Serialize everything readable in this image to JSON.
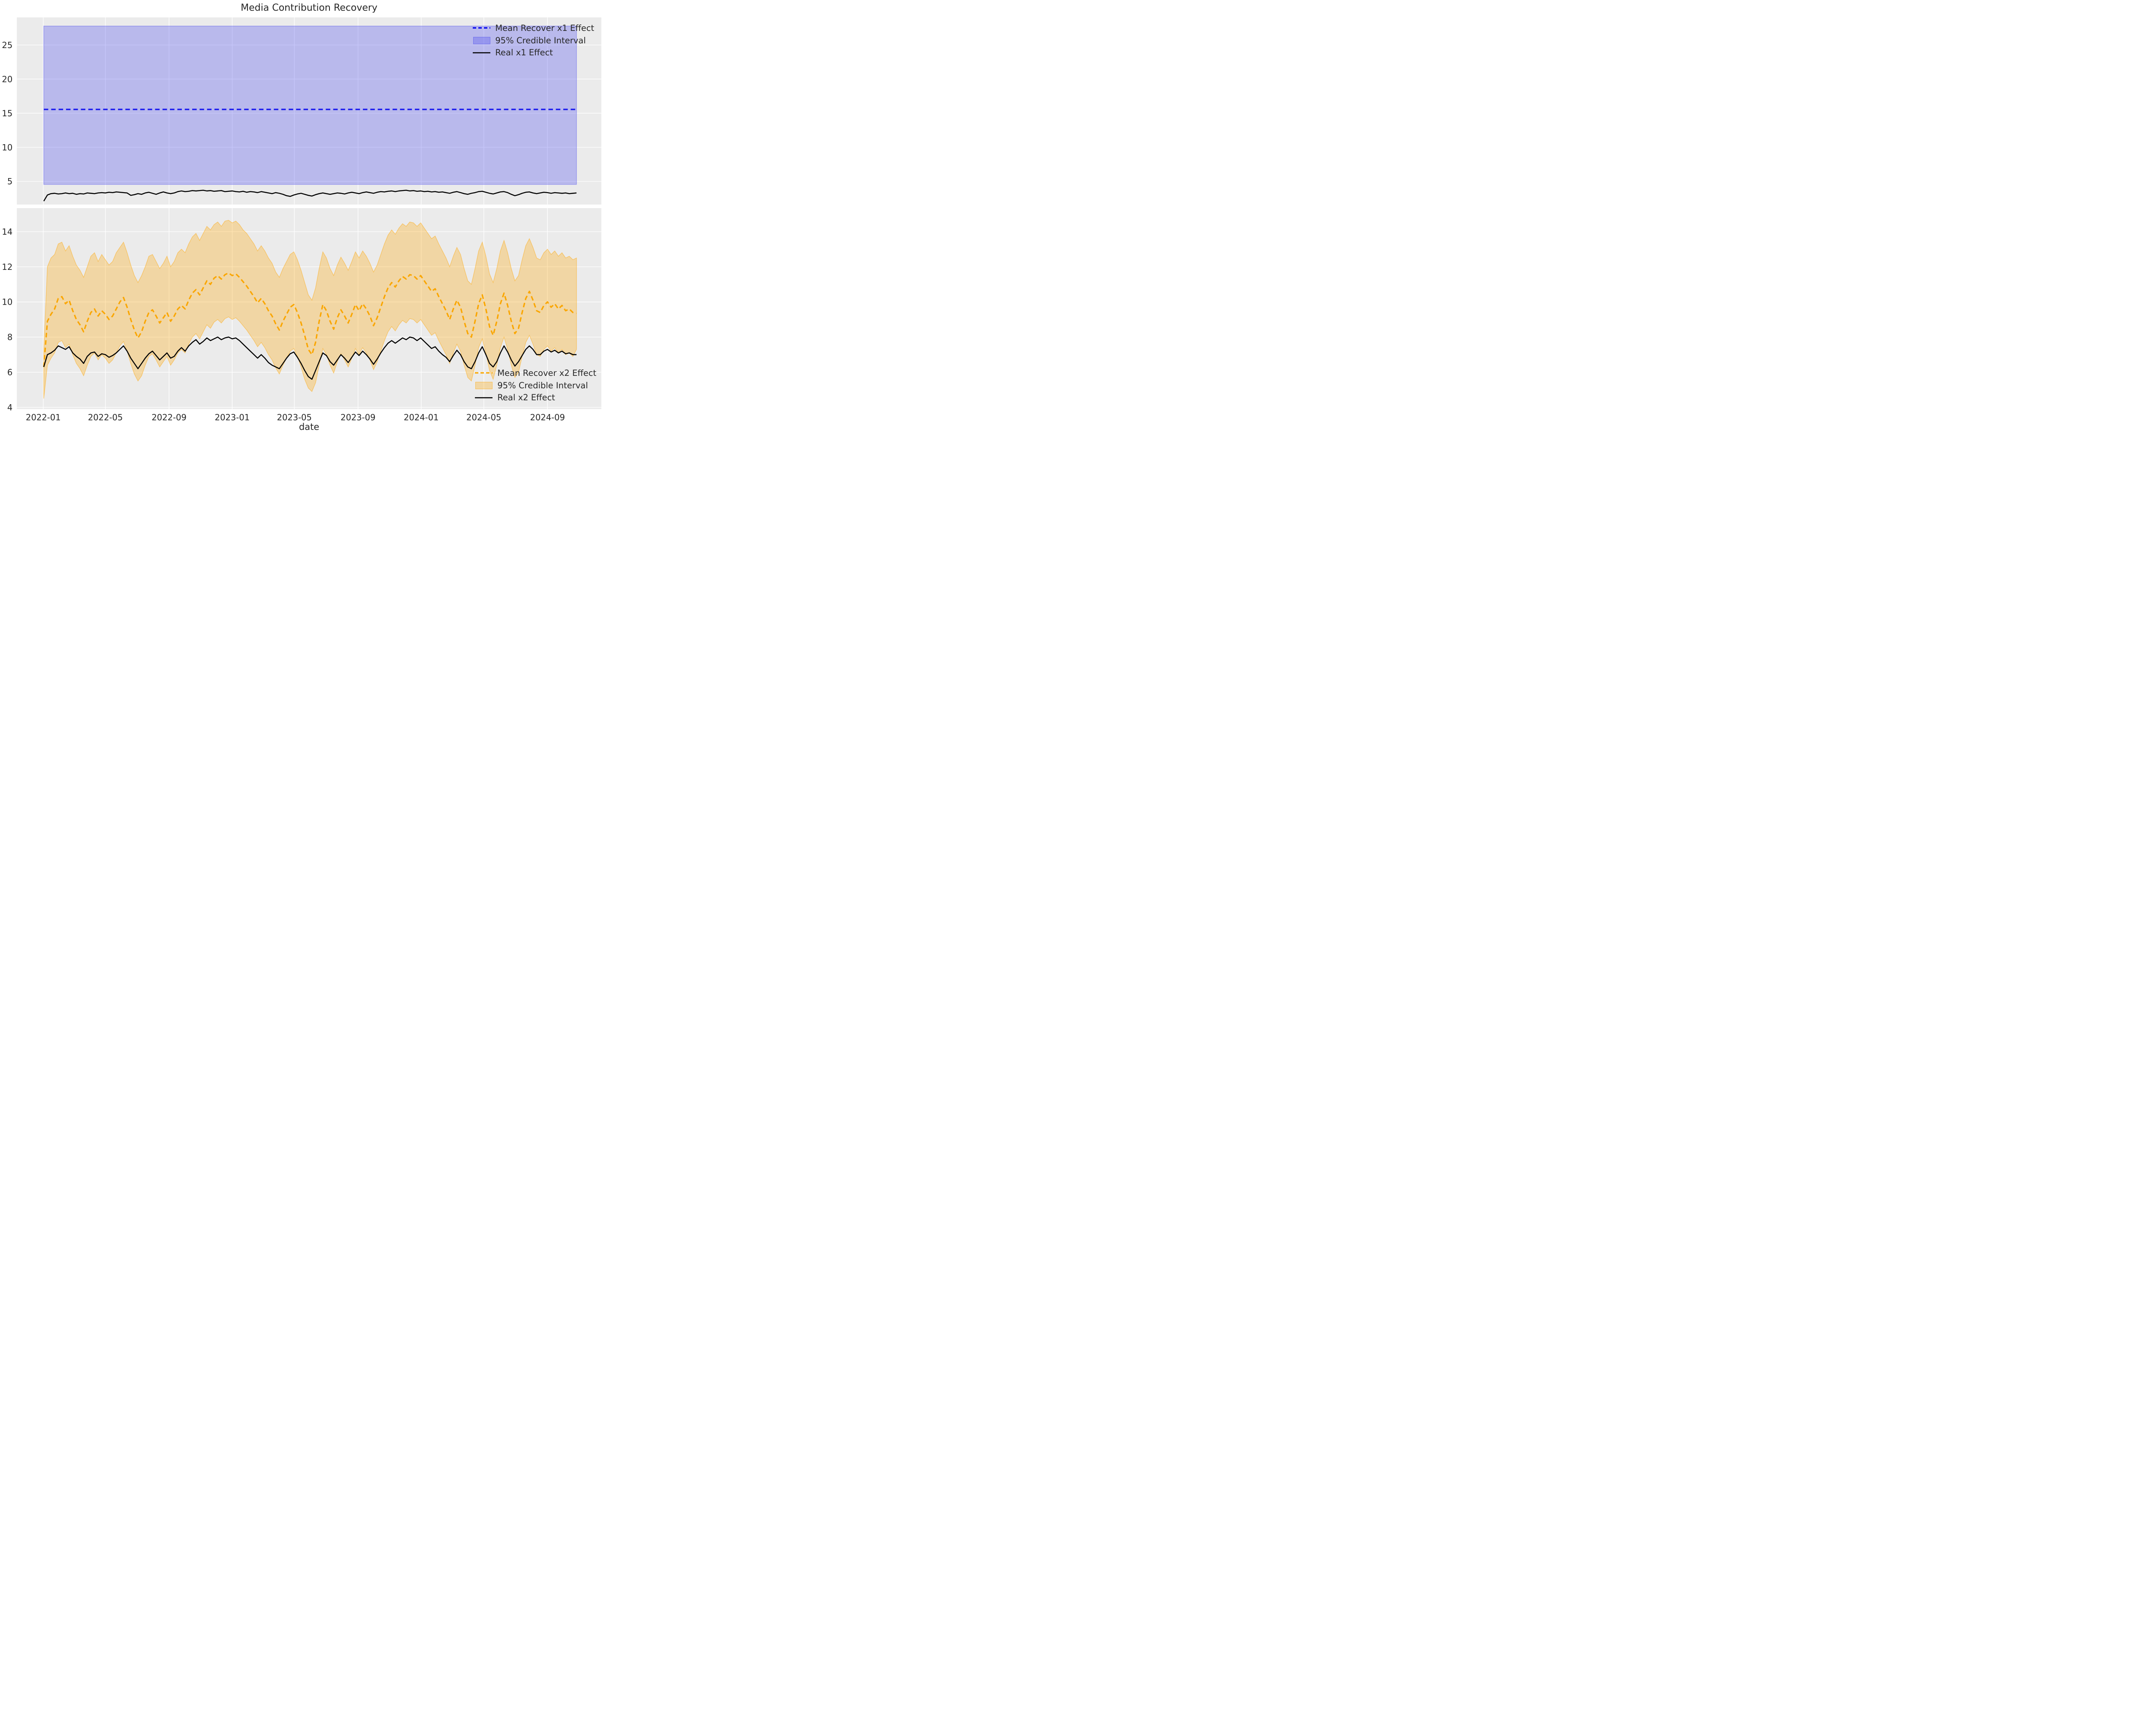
{
  "figure": {
    "title": "Media Contribution Recovery",
    "background_color": "#ffffff",
    "axes_background_color": "#ebebeb",
    "grid_color": "#ffffff",
    "text_color": "#262626"
  },
  "chart_data": [
    {
      "type": "line",
      "subplot": "top",
      "x_start_date": "2022-01-02",
      "x_step_days": 7,
      "n_points": 148,
      "x_domain_days": [
        -51,
        1078
      ],
      "xtick_days": [
        0,
        120,
        243,
        365,
        485,
        608,
        730,
        851,
        974
      ],
      "xtick_labels": [
        "2022-01",
        "2022-05",
        "2022-09",
        "2023-01",
        "2023-05",
        "2023-09",
        "2024-01",
        "2024-05",
        "2024-09"
      ],
      "show_xtick_labels": false,
      "xlabel": "",
      "ylim": [
        1.6,
        29.05
      ],
      "yticks": [
        5,
        10,
        15,
        20,
        25
      ],
      "grid": true,
      "legend_position": "upper right",
      "series": [
        {
          "name": "Mean Recover x1 Effect",
          "type": "line",
          "style": "dashed",
          "color": "#0000ee",
          "constant_value": 15.55
        },
        {
          "name": "95% Credible Interval",
          "type": "band",
          "fill_color": "rgba(68,68,238,0.30)",
          "edge_color": "rgba(68,68,238,0.45)",
          "lower_constant": 4.55,
          "upper_constant": 27.78
        },
        {
          "name": "Real x1 Effect",
          "type": "line",
          "style": "solid",
          "color": "#000000",
          "values": [
            2.1,
            3.0,
            3.2,
            3.25,
            3.15,
            3.2,
            3.3,
            3.2,
            3.25,
            3.1,
            3.2,
            3.15,
            3.3,
            3.25,
            3.2,
            3.3,
            3.35,
            3.3,
            3.4,
            3.35,
            3.45,
            3.4,
            3.35,
            3.3,
            2.95,
            3.05,
            3.2,
            3.1,
            3.3,
            3.4,
            3.25,
            3.1,
            3.3,
            3.45,
            3.3,
            3.2,
            3.3,
            3.5,
            3.6,
            3.5,
            3.55,
            3.65,
            3.6,
            3.65,
            3.7,
            3.6,
            3.65,
            3.55,
            3.6,
            3.65,
            3.5,
            3.55,
            3.6,
            3.5,
            3.45,
            3.55,
            3.4,
            3.5,
            3.45,
            3.35,
            3.5,
            3.4,
            3.3,
            3.2,
            3.35,
            3.25,
            3.1,
            2.9,
            2.8,
            3.0,
            3.15,
            3.25,
            3.1,
            2.95,
            2.85,
            3.05,
            3.2,
            3.3,
            3.2,
            3.1,
            3.2,
            3.3,
            3.25,
            3.15,
            3.3,
            3.4,
            3.3,
            3.2,
            3.35,
            3.45,
            3.35,
            3.25,
            3.4,
            3.5,
            3.45,
            3.55,
            3.6,
            3.5,
            3.6,
            3.65,
            3.7,
            3.6,
            3.65,
            3.55,
            3.6,
            3.5,
            3.55,
            3.45,
            3.5,
            3.4,
            3.45,
            3.35,
            3.25,
            3.4,
            3.5,
            3.35,
            3.2,
            3.1,
            3.25,
            3.35,
            3.5,
            3.55,
            3.4,
            3.25,
            3.15,
            3.3,
            3.45,
            3.5,
            3.35,
            3.1,
            2.9,
            3.05,
            3.25,
            3.4,
            3.45,
            3.3,
            3.2,
            3.3,
            3.4,
            3.35,
            3.25,
            3.35,
            3.3,
            3.25,
            3.3,
            3.2,
            3.25,
            3.3
          ]
        }
      ]
    },
    {
      "type": "line",
      "subplot": "bottom",
      "x_start_date": "2022-01-02",
      "x_step_days": 7,
      "n_points": 148,
      "x_domain_days": [
        -51,
        1078
      ],
      "xtick_days": [
        0,
        120,
        243,
        365,
        485,
        608,
        730,
        851,
        974
      ],
      "xtick_labels": [
        "2022-01",
        "2022-05",
        "2022-09",
        "2023-01",
        "2023-05",
        "2023-09",
        "2024-01",
        "2024-05",
        "2024-09"
      ],
      "show_xtick_labels": true,
      "xlabel": "date",
      "ylim": [
        3.9,
        15.34
      ],
      "yticks": [
        4,
        6,
        8,
        10,
        12,
        14
      ],
      "grid": true,
      "legend_position": "lower right",
      "series": [
        {
          "name": "Mean Recover x2 Effect",
          "type": "line",
          "style": "dashed",
          "color": "#f8a602",
          "values": [
            6.3,
            8.9,
            9.3,
            9.6,
            10.2,
            10.3,
            9.9,
            10.1,
            9.5,
            9.0,
            8.7,
            8.3,
            8.9,
            9.4,
            9.6,
            9.2,
            9.5,
            9.3,
            9.0,
            9.2,
            9.6,
            10.0,
            10.25,
            9.7,
            9.0,
            8.4,
            7.95,
            8.3,
            8.9,
            9.4,
            9.55,
            9.2,
            8.8,
            9.1,
            9.4,
            8.9,
            9.2,
            9.6,
            9.8,
            9.6,
            10.1,
            10.5,
            10.7,
            10.4,
            10.8,
            11.2,
            11.0,
            11.35,
            11.5,
            11.3,
            11.55,
            11.65,
            11.5,
            11.6,
            11.4,
            11.15,
            10.9,
            10.6,
            10.3,
            9.95,
            10.2,
            9.9,
            9.5,
            9.2,
            8.75,
            8.4,
            8.9,
            9.3,
            9.7,
            9.85,
            9.4,
            8.8,
            8.1,
            7.3,
            7.0,
            7.7,
            8.9,
            9.85,
            9.5,
            8.9,
            8.45,
            9.1,
            9.55,
            9.2,
            8.8,
            9.3,
            9.85,
            9.5,
            9.9,
            9.6,
            9.2,
            8.65,
            9.1,
            9.7,
            10.3,
            10.8,
            11.1,
            10.85,
            11.2,
            11.45,
            11.3,
            11.55,
            11.5,
            11.3,
            11.5,
            11.2,
            10.9,
            10.6,
            10.75,
            10.3,
            9.9,
            9.5,
            9.0,
            9.6,
            10.1,
            9.7,
            8.9,
            8.2,
            8.0,
            8.9,
            9.9,
            10.4,
            9.6,
            8.6,
            8.1,
            8.9,
            9.9,
            10.5,
            9.8,
            8.9,
            8.2,
            8.5,
            9.4,
            10.2,
            10.6,
            10.1,
            9.5,
            9.4,
            9.8,
            10.0,
            9.7,
            9.9,
            9.6,
            9.8,
            9.5,
            9.6,
            9.4,
            9.35
          ]
        },
        {
          "name": "95% Credible Interval",
          "type": "band",
          "fill_color": "rgba(255,166,0,0.30)",
          "edge_color": "rgba(255,166,0,0.50)",
          "upper_values": [
            7.3,
            12.0,
            12.5,
            12.7,
            13.3,
            13.4,
            12.9,
            13.2,
            12.6,
            12.1,
            11.8,
            11.4,
            12.0,
            12.6,
            12.8,
            12.3,
            12.7,
            12.4,
            12.1,
            12.3,
            12.8,
            13.1,
            13.4,
            12.8,
            12.1,
            11.5,
            11.1,
            11.5,
            12.0,
            12.6,
            12.7,
            12.3,
            11.9,
            12.2,
            12.6,
            12.0,
            12.3,
            12.8,
            13.0,
            12.8,
            13.3,
            13.7,
            13.9,
            13.5,
            13.9,
            14.3,
            14.1,
            14.4,
            14.55,
            14.3,
            14.6,
            14.65,
            14.5,
            14.6,
            14.4,
            14.1,
            13.9,
            13.6,
            13.3,
            12.9,
            13.2,
            12.9,
            12.5,
            12.2,
            11.7,
            11.4,
            11.9,
            12.3,
            12.7,
            12.85,
            12.4,
            11.8,
            11.1,
            10.4,
            10.1,
            10.8,
            11.9,
            12.85,
            12.5,
            11.9,
            11.5,
            12.1,
            12.55,
            12.2,
            11.8,
            12.3,
            12.85,
            12.5,
            12.9,
            12.6,
            12.2,
            11.7,
            12.1,
            12.7,
            13.3,
            13.8,
            14.1,
            13.85,
            14.2,
            14.45,
            14.3,
            14.55,
            14.5,
            14.3,
            14.5,
            14.2,
            13.9,
            13.6,
            13.75,
            13.3,
            12.9,
            12.5,
            12.0,
            12.6,
            13.1,
            12.7,
            11.9,
            11.2,
            11.0,
            11.9,
            12.9,
            13.4,
            12.6,
            11.6,
            11.1,
            11.9,
            12.9,
            13.5,
            12.8,
            11.9,
            11.2,
            11.5,
            12.4,
            13.2,
            13.6,
            13.1,
            12.5,
            12.4,
            12.8,
            13.0,
            12.7,
            12.9,
            12.6,
            12.8,
            12.5,
            12.6,
            12.4,
            12.5
          ],
          "lower_values": [
            4.5,
            6.4,
            6.8,
            7.1,
            7.7,
            7.8,
            7.4,
            7.6,
            7.0,
            6.5,
            6.2,
            5.8,
            6.4,
            6.9,
            7.1,
            6.7,
            7.0,
            6.8,
            6.5,
            6.7,
            7.1,
            7.5,
            7.75,
            7.2,
            6.5,
            5.9,
            5.5,
            5.8,
            6.4,
            6.9,
            7.05,
            6.7,
            6.3,
            6.6,
            6.9,
            6.4,
            6.7,
            7.1,
            7.3,
            7.1,
            7.6,
            8.0,
            8.2,
            7.9,
            8.3,
            8.7,
            8.5,
            8.85,
            9.0,
            8.8,
            9.05,
            9.15,
            9.0,
            9.1,
            8.9,
            8.65,
            8.4,
            8.1,
            7.8,
            7.45,
            7.7,
            7.4,
            7.0,
            6.7,
            6.25,
            5.9,
            6.4,
            6.8,
            7.2,
            7.35,
            6.9,
            6.3,
            5.6,
            5.1,
            4.9,
            5.4,
            6.4,
            7.35,
            7.0,
            6.4,
            5.95,
            6.6,
            7.05,
            6.7,
            6.3,
            6.8,
            7.35,
            7.0,
            7.4,
            7.1,
            6.7,
            6.15,
            6.6,
            7.2,
            7.8,
            8.3,
            8.6,
            8.35,
            8.7,
            8.95,
            8.8,
            9.05,
            9.0,
            8.8,
            9.0,
            8.7,
            8.4,
            8.1,
            8.25,
            7.8,
            7.4,
            7.0,
            6.5,
            7.1,
            7.6,
            7.2,
            6.4,
            5.7,
            5.5,
            6.4,
            7.4,
            7.9,
            7.1,
            6.1,
            5.6,
            6.4,
            7.4,
            8.0,
            7.3,
            6.4,
            5.7,
            6.0,
            6.9,
            7.7,
            8.1,
            7.6,
            7.0,
            6.9,
            7.3,
            7.5,
            7.2,
            7.4,
            7.1,
            7.3,
            7.0,
            7.1,
            6.9,
            7.3
          ]
        },
        {
          "name": "Real x2 Effect",
          "type": "line",
          "style": "solid",
          "color": "#000000",
          "values": [
            6.3,
            7.0,
            7.1,
            7.25,
            7.5,
            7.4,
            7.3,
            7.45,
            7.1,
            6.9,
            6.75,
            6.5,
            6.9,
            7.1,
            7.15,
            6.9,
            7.05,
            7.0,
            6.85,
            6.95,
            7.1,
            7.3,
            7.5,
            7.2,
            6.8,
            6.5,
            6.2,
            6.5,
            6.8,
            7.05,
            7.2,
            6.95,
            6.7,
            6.9,
            7.1,
            6.8,
            6.9,
            7.2,
            7.4,
            7.2,
            7.5,
            7.7,
            7.85,
            7.6,
            7.75,
            7.95,
            7.8,
            7.9,
            8.0,
            7.85,
            7.95,
            8.0,
            7.9,
            7.95,
            7.8,
            7.6,
            7.4,
            7.2,
            7.0,
            6.8,
            7.0,
            6.8,
            6.55,
            6.4,
            6.3,
            6.2,
            6.5,
            6.8,
            7.05,
            7.15,
            6.85,
            6.5,
            6.1,
            5.75,
            5.6,
            6.1,
            6.6,
            7.1,
            6.95,
            6.6,
            6.4,
            6.7,
            7.0,
            6.8,
            6.55,
            6.85,
            7.15,
            6.95,
            7.2,
            7.0,
            6.75,
            6.45,
            6.75,
            7.1,
            7.4,
            7.65,
            7.8,
            7.65,
            7.8,
            7.95,
            7.85,
            8.0,
            7.95,
            7.8,
            7.95,
            7.75,
            7.55,
            7.35,
            7.45,
            7.2,
            7.0,
            6.85,
            6.6,
            6.95,
            7.25,
            7.0,
            6.6,
            6.3,
            6.2,
            6.6,
            7.1,
            7.45,
            7.0,
            6.5,
            6.3,
            6.6,
            7.1,
            7.5,
            7.15,
            6.7,
            6.35,
            6.6,
            6.95,
            7.3,
            7.5,
            7.3,
            7.0,
            7.0,
            7.2,
            7.3,
            7.15,
            7.25,
            7.1,
            7.2,
            7.05,
            7.1,
            7.0,
            7.0
          ]
        }
      ]
    }
  ]
}
